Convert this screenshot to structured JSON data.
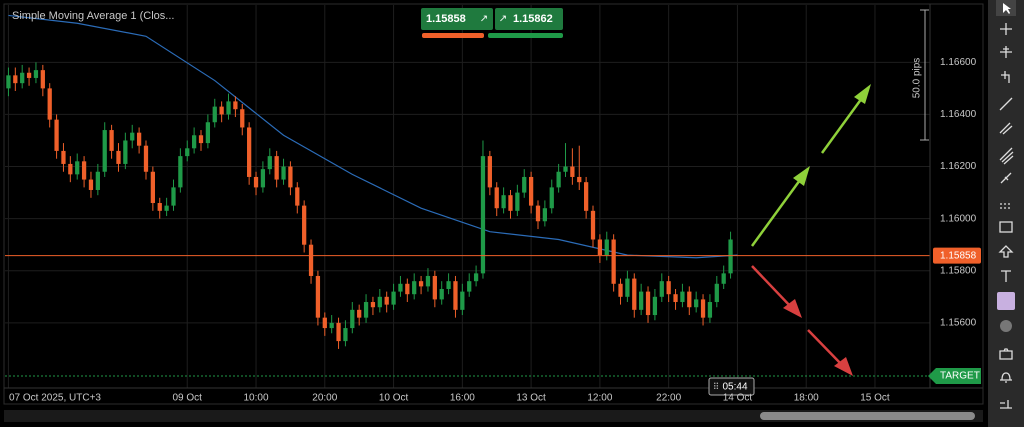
{
  "chart_data": {
    "type": "candlestick",
    "symbol_pair": {
      "sell": "1.15858",
      "buy": "1.15862"
    },
    "pips_label": "50.0 pips",
    "time_label": "05:44",
    "up_color": "#1f9a48",
    "down_color": "#f0602a",
    "grid": true,
    "xlim": [
      -0.5,
      134
    ],
    "ylim": [
      1.1535,
      1.1682
    ],
    "yticks": [
      {
        "value": 1.156,
        "label": "1.15600"
      },
      {
        "value": 1.158,
        "label": "1.15800"
      },
      {
        "value": 1.16,
        "label": "1.16000"
      },
      {
        "value": 1.162,
        "label": "1.16200"
      },
      {
        "value": 1.164,
        "label": "1.16400"
      },
      {
        "value": 1.166,
        "label": "1.16600"
      }
    ],
    "xticks": [
      {
        "value": 0,
        "label": "07 Oct 2025, UTC+3"
      },
      {
        "value": 26,
        "label": "09 Oct"
      },
      {
        "value": 36,
        "label": "10:00"
      },
      {
        "value": 46,
        "label": "20:00"
      },
      {
        "value": 56,
        "label": "10 Oct"
      },
      {
        "value": 66,
        "label": "16:00"
      },
      {
        "value": 76,
        "label": "13 Oct"
      },
      {
        "value": 86,
        "label": "12:00"
      },
      {
        "value": 96,
        "label": "22:00"
      },
      {
        "value": 106,
        "label": "14 Oct"
      },
      {
        "value": 116,
        "label": "18:00"
      },
      {
        "value": 126,
        "label": "15 Oct"
      }
    ],
    "current_price": {
      "value": 1.15858,
      "label": "1.15858",
      "color": "#f0602a"
    },
    "target": {
      "value": 1.15396,
      "label": "TARGET",
      "color": "#1f9a48"
    },
    "sma": {
      "name": "Simple Moving Average 1 (Clos...",
      "color": "#2b6cb8",
      "x": [
        0,
        10,
        20,
        30,
        40,
        50,
        60,
        70,
        80,
        90,
        100,
        106
      ],
      "values": [
        1.1678,
        1.1675,
        1.167,
        1.1653,
        1.1632,
        1.1617,
        1.1604,
        1.1595,
        1.1592,
        1.1586,
        1.1585,
        1.1586
      ]
    },
    "candles": [
      [
        1.165,
        1.1658,
        1.1647,
        1.1655
      ],
      [
        1.1655,
        1.1658,
        1.1649,
        1.1652
      ],
      [
        1.1652,
        1.1659,
        1.165,
        1.1656
      ],
      [
        1.1656,
        1.1658,
        1.1651,
        1.1654
      ],
      [
        1.1654,
        1.166,
        1.1652,
        1.1657
      ],
      [
        1.1657,
        1.1659,
        1.1647,
        1.165
      ],
      [
        1.165,
        1.1652,
        1.1635,
        1.1638
      ],
      [
        1.1638,
        1.164,
        1.1623,
        1.1626
      ],
      [
        1.1626,
        1.1629,
        1.1618,
        1.1621
      ],
      [
        1.1621,
        1.1624,
        1.1614,
        1.1617
      ],
      [
        1.1617,
        1.1625,
        1.1615,
        1.1622
      ],
      [
        1.1622,
        1.1624,
        1.1612,
        1.1615
      ],
      [
        1.1615,
        1.1618,
        1.1608,
        1.1611
      ],
      [
        1.1611,
        1.1621,
        1.1609,
        1.1618
      ],
      [
        1.1618,
        1.1637,
        1.1616,
        1.1634
      ],
      [
        1.1634,
        1.1636,
        1.1623,
        1.1626
      ],
      [
        1.1626,
        1.1629,
        1.1618,
        1.1621
      ],
      [
        1.1621,
        1.1633,
        1.1619,
        1.163
      ],
      [
        1.163,
        1.1636,
        1.1627,
        1.1633
      ],
      [
        1.1633,
        1.1635,
        1.1625,
        1.1628
      ],
      [
        1.1628,
        1.163,
        1.1615,
        1.1618
      ],
      [
        1.1618,
        1.162,
        1.1603,
        1.1606
      ],
      [
        1.1606,
        1.1608,
        1.16,
        1.1603
      ],
      [
        1.1603,
        1.1608,
        1.1601,
        1.1605
      ],
      [
        1.1605,
        1.1615,
        1.1603,
        1.1612
      ],
      [
        1.1612,
        1.1627,
        1.161,
        1.1624
      ],
      [
        1.1624,
        1.163,
        1.1622,
        1.1627
      ],
      [
        1.1627,
        1.1635,
        1.1625,
        1.1632
      ],
      [
        1.1632,
        1.1634,
        1.1626,
        1.1629
      ],
      [
        1.1629,
        1.164,
        1.1627,
        1.1637
      ],
      [
        1.1637,
        1.1646,
        1.1635,
        1.1643
      ],
      [
        1.1643,
        1.1645,
        1.1637,
        1.164
      ],
      [
        1.164,
        1.1648,
        1.1638,
        1.1645
      ],
      [
        1.1645,
        1.1647,
        1.1639,
        1.1642
      ],
      [
        1.1642,
        1.1644,
        1.1632,
        1.1635
      ],
      [
        1.1635,
        1.1637,
        1.1613,
        1.1616
      ],
      [
        1.1616,
        1.1618,
        1.1609,
        1.1612
      ],
      [
        1.1612,
        1.1622,
        1.161,
        1.1619
      ],
      [
        1.1619,
        1.1627,
        1.1617,
        1.1624
      ],
      [
        1.1624,
        1.1626,
        1.1612,
        1.1615
      ],
      [
        1.1615,
        1.1623,
        1.1613,
        1.162
      ],
      [
        1.162,
        1.1622,
        1.1609,
        1.1612
      ],
      [
        1.1612,
        1.1614,
        1.1602,
        1.1605
      ],
      [
        1.1605,
        1.1607,
        1.1587,
        1.159
      ],
      [
        1.159,
        1.1592,
        1.1575,
        1.1578
      ],
      [
        1.1578,
        1.158,
        1.1559,
        1.1562
      ],
      [
        1.1562,
        1.1564,
        1.1555,
        1.1558
      ],
      [
        1.1558,
        1.1563,
        1.1556,
        1.156
      ],
      [
        1.156,
        1.1562,
        1.155,
        1.1553
      ],
      [
        1.1553,
        1.1561,
        1.1551,
        1.1558
      ],
      [
        1.1558,
        1.1568,
        1.1556,
        1.1565
      ],
      [
        1.1565,
        1.1567,
        1.1559,
        1.1562
      ],
      [
        1.1562,
        1.1571,
        1.156,
        1.1568
      ],
      [
        1.1568,
        1.157,
        1.1563,
        1.1566
      ],
      [
        1.1566,
        1.1573,
        1.1564,
        1.157
      ],
      [
        1.157,
        1.1572,
        1.1564,
        1.1567
      ],
      [
        1.1567,
        1.1575,
        1.1565,
        1.1572
      ],
      [
        1.1572,
        1.1578,
        1.157,
        1.1575
      ],
      [
        1.1575,
        1.1577,
        1.1568,
        1.1571
      ],
      [
        1.1571,
        1.1579,
        1.1569,
        1.1576
      ],
      [
        1.1576,
        1.1578,
        1.1571,
        1.1574
      ],
      [
        1.1574,
        1.1581,
        1.1572,
        1.1578
      ],
      [
        1.1578,
        1.158,
        1.1566,
        1.1569
      ],
      [
        1.1569,
        1.1576,
        1.1567,
        1.1573
      ],
      [
        1.1573,
        1.1579,
        1.1571,
        1.1576
      ],
      [
        1.1576,
        1.1578,
        1.1562,
        1.1565
      ],
      [
        1.1565,
        1.1575,
        1.1563,
        1.1572
      ],
      [
        1.1572,
        1.1579,
        1.157,
        1.1576
      ],
      [
        1.1576,
        1.1582,
        1.1574,
        1.1579
      ],
      [
        1.1579,
        1.163,
        1.1577,
        1.1624
      ],
      [
        1.1624,
        1.1626,
        1.1609,
        1.1612
      ],
      [
        1.1612,
        1.1614,
        1.1601,
        1.1604
      ],
      [
        1.1604,
        1.1612,
        1.1602,
        1.1609
      ],
      [
        1.1609,
        1.1611,
        1.16,
        1.1603
      ],
      [
        1.1603,
        1.1613,
        1.1601,
        1.161
      ],
      [
        1.161,
        1.1619,
        1.1608,
        1.1616
      ],
      [
        1.1616,
        1.1618,
        1.1602,
        1.1605
      ],
      [
        1.1605,
        1.1607,
        1.1596,
        1.1599
      ],
      [
        1.1599,
        1.1607,
        1.1597,
        1.1604
      ],
      [
        1.1604,
        1.1615,
        1.1602,
        1.1612
      ],
      [
        1.1612,
        1.1621,
        1.161,
        1.1618
      ],
      [
        1.1618,
        1.1629,
        1.1616,
        1.162
      ],
      [
        1.162,
        1.1627,
        1.1613,
        1.1616
      ],
      [
        1.1616,
        1.1628,
        1.1611,
        1.1614
      ],
      [
        1.1614,
        1.1616,
        1.16,
        1.1603
      ],
      [
        1.1603,
        1.1605,
        1.1589,
        1.1592
      ],
      [
        1.1592,
        1.1594,
        1.1583,
        1.1586
      ],
      [
        1.1586,
        1.1595,
        1.1584,
        1.1592
      ],
      [
        1.1592,
        1.1594,
        1.1572,
        1.1575
      ],
      [
        1.1575,
        1.1577,
        1.1567,
        1.157
      ],
      [
        1.157,
        1.158,
        1.1568,
        1.1577
      ],
      [
        1.1577,
        1.1579,
        1.1562,
        1.1565
      ],
      [
        1.1565,
        1.1575,
        1.1563,
        1.1572
      ],
      [
        1.1572,
        1.1574,
        1.156,
        1.1563
      ],
      [
        1.1563,
        1.1573,
        1.1561,
        1.157
      ],
      [
        1.157,
        1.1579,
        1.1568,
        1.1576
      ],
      [
        1.1576,
        1.1578,
        1.1568,
        1.1571
      ],
      [
        1.1571,
        1.1573,
        1.1565,
        1.1568
      ],
      [
        1.1568,
        1.1575,
        1.1566,
        1.1572
      ],
      [
        1.1572,
        1.1574,
        1.1563,
        1.1566
      ],
      [
        1.1566,
        1.1572,
        1.1564,
        1.1569
      ],
      [
        1.1569,
        1.1571,
        1.1559,
        1.1562
      ],
      [
        1.1562,
        1.1571,
        1.156,
        1.1568
      ],
      [
        1.1568,
        1.1578,
        1.1566,
        1.1575
      ],
      [
        1.1575,
        1.1582,
        1.1573,
        1.1579
      ],
      [
        1.1579,
        1.1595,
        1.1577,
        1.1592
      ]
    ]
  }
}
